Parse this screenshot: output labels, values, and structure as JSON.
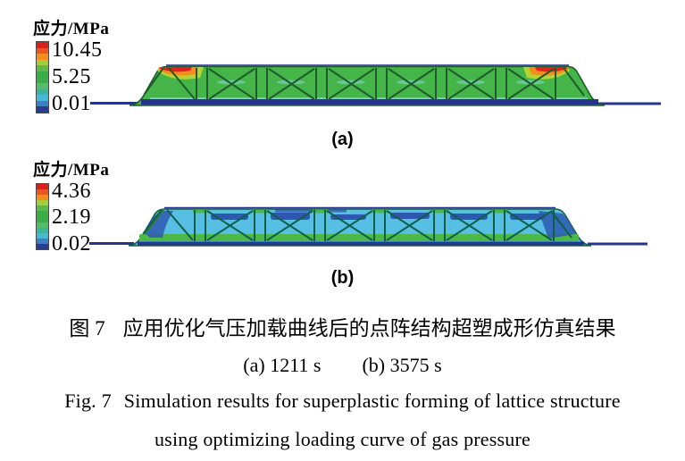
{
  "colors": {
    "body-a": "#45b549",
    "body-b": "#56bfe3",
    "web-a": "#1d5c2a",
    "web-b": "#0f5f46",
    "navy": "#27348b",
    "band-green": "#4cb848",
    "patch-blue": "#2e58b0",
    "hot-red": "#e3201f",
    "hot-orange": "#f58c1e",
    "hot-lime": "#b5d434",
    "cyan-smudge": "#8fd9e8"
  },
  "colorbar_colors": [
    "#d9201f",
    "#ef5223",
    "#f58c1e",
    "#a7cc38",
    "#5cb848",
    "#3aad49",
    "#3aad49",
    "#57bb6b",
    "#3cb49a",
    "#45b8d8",
    "#3f7ec0",
    "#2a3c90"
  ],
  "panel_a": {
    "legend_title": "应力/MPa",
    "scale_max": "10.45",
    "scale_mid": "5.25",
    "scale_min": "0.01",
    "label": "(a)"
  },
  "panel_b": {
    "legend_title": "应力/MPa",
    "scale_max": "4.36",
    "scale_mid": "2.19",
    "scale_min": "0.02",
    "label": "(b)"
  },
  "caption": {
    "zh_fig": "图 7",
    "zh_text": "应用优化气压加载曲线后的点阵结构超塑成形仿真结果",
    "time_a": "(a) 1211 s",
    "time_b": "(b) 3575 s",
    "en_fig": "Fig. 7",
    "en_line1": "Simulation results for superplastic forming of lattice structure",
    "en_line2": "using optimizing loading curve of gas pressure"
  },
  "chart_data": {
    "type": "heatmap",
    "title": "图 7 应用优化气压加载曲线后的点阵结构超塑成形仿真结果 / Fig. 7 Simulation results for superplastic forming of lattice structure using optimizing loading curve of gas pressure",
    "panels": [
      {
        "id": "a",
        "time_s": 1211,
        "quantity": "应力 (stress)",
        "unit": "MPa",
        "scale_max": 10.45,
        "scale_mid": 5.25,
        "scale_min": 0.01,
        "dominant_state": "mostly mid-stress green body, red-orange hot spots at both upper slope corners"
      },
      {
        "id": "b",
        "time_s": 3575,
        "quantity": "应力 (stress)",
        "unit": "MPa",
        "scale_max": 4.36,
        "scale_mid": 2.19,
        "scale_min": 0.02,
        "dominant_state": "mostly low-stress cyan body with dark-blue patches and green bottom band"
      }
    ],
    "legend_position": "left of each panel, vertical rainbow colorbar (red=max, blue=min), 12 discrete segments"
  }
}
